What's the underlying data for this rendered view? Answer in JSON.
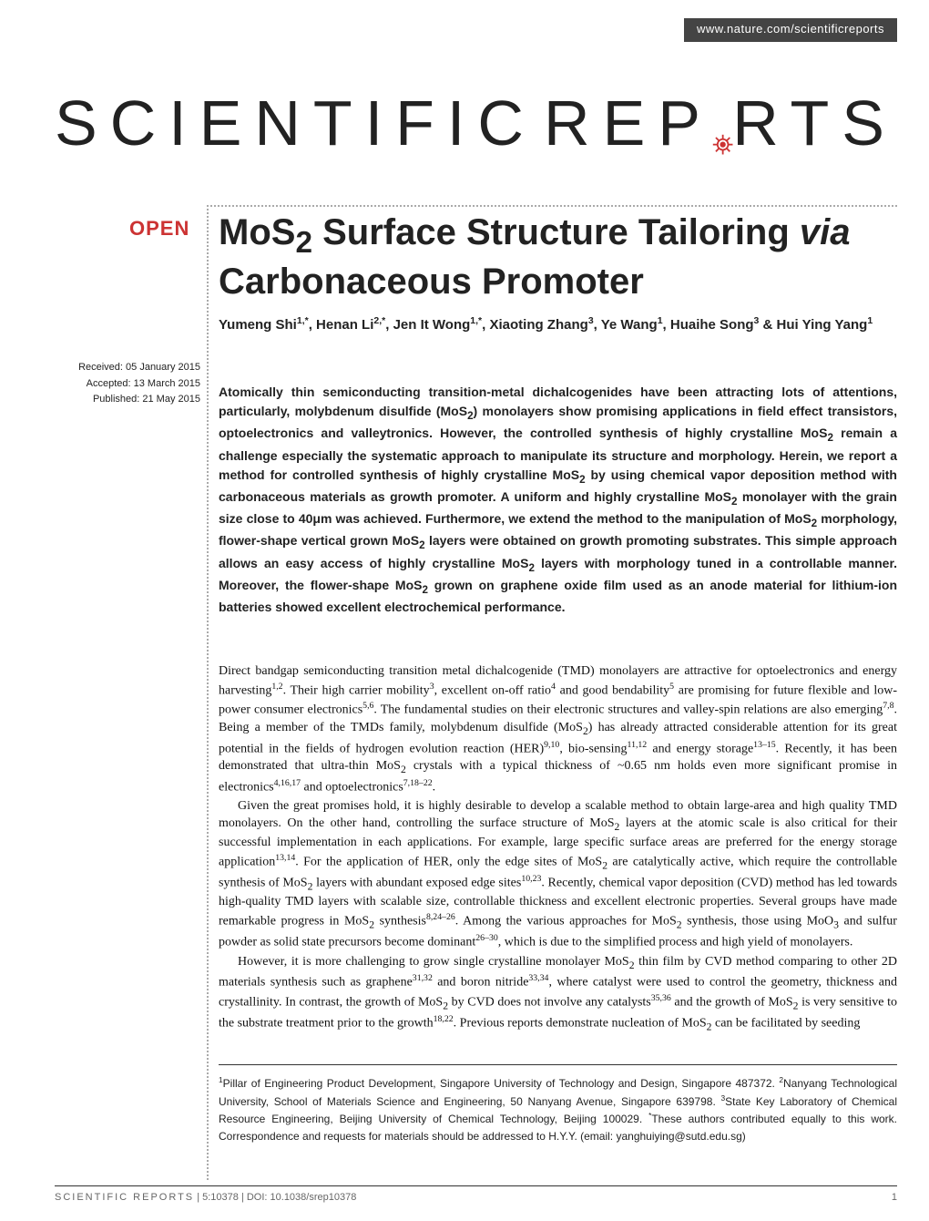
{
  "header": {
    "url": "www.nature.com/scientificreports",
    "logo_part1": "SCIENTIFIC",
    "logo_part2": "REP",
    "logo_part3": "RTS",
    "gear_color": "#cc3333"
  },
  "open_badge": "OPEN",
  "title": "MoS₂ Surface Structure Tailoring via Carbonaceous Promoter",
  "title_html": "MoS<sub>2</sub> Surface Structure Tailoring <i>via</i> Carbonaceous Promoter",
  "authors_html": "Yumeng Shi<sup>1,*</sup>, Henan Li<sup>2,*</sup>, Jen It Wong<sup>1,*</sup>, Xiaoting Zhang<sup>3</sup>, Ye Wang<sup>1</sup>, Huaihe Song<sup>3</sup> & Hui Ying Yang<sup>1</sup>",
  "dates": {
    "received": "Received: 05 January 2015",
    "accepted": "Accepted: 13 March 2015",
    "published": "Published: 21 May 2015"
  },
  "abstract_html": "Atomically thin semiconducting transition-metal dichalcogenides have been attracting lots of attentions, particularly, molybdenum disulfide (MoS<sub>2</sub>) monolayers show promising applications in field effect transistors, optoelectronics and valleytronics. However, the controlled synthesis of highly crystalline MoS<sub>2</sub> remain a challenge especially the systematic approach to manipulate its structure and morphology. Herein, we report a method for controlled synthesis of highly crystalline MoS<sub>2</sub> by using chemical vapor deposition method with carbonaceous materials as growth promoter. A uniform and highly crystalline MoS<sub>2</sub> monolayer with the grain size close to 40μm was achieved. Furthermore, we extend the method to the manipulation of MoS<sub>2</sub> morphology, flower-shape vertical grown MoS<sub>2</sub> layers were obtained on growth promoting substrates. This simple approach allows an easy access of highly crystalline MoS<sub>2</sub> layers with morphology tuned in a controllable manner. Moreover, the flower-shape MoS<sub>2</sub> grown on graphene oxide film used as an anode material for lithium-ion batteries showed excellent electrochemical performance.",
  "body_paragraphs_html": [
    "Direct bandgap semiconducting transition metal dichalcogenide (TMD) monolayers are attractive for optoelectronics and energy harvesting<sup>1,2</sup>. Their high carrier mobility<sup>3</sup>, excellent on-off ratio<sup>4</sup> and good bendability<sup>5</sup> are promising for future flexible and low-power consumer electronics<sup>5,6</sup>. The fundamental studies on their electronic structures and valley-spin relations are also emerging<sup>7,8</sup>. Being a member of the TMDs family, molybdenum disulfide (MoS<sub>2</sub>) has already attracted considerable attention for its great potential in the fields of hydrogen evolution reaction (HER)<sup>9,10</sup>, bio-sensing<sup>11,12</sup> and energy storage<sup>13–15</sup>. Recently, it has been demonstrated that ultra-thin MoS<sub>2</sub> crystals with a typical thickness of ~0.65 nm holds even more significant promise in electronics<sup>4,16,17</sup> and optoelectronics<sup>7,18–22</sup>.",
    "Given the great promises hold, it is highly desirable to develop a scalable method to obtain large-area and high quality TMD monolayers. On the other hand, controlling the surface structure of MoS<sub>2</sub> layers at the atomic scale is also critical for their successful implementation in each applications. For example, large specific surface areas are preferred for the energy storage application<sup>13,14</sup>. For the application of HER, only the edge sites of MoS<sub>2</sub> are catalytically active, which require the controllable synthesis of MoS<sub>2</sub> layers with abundant exposed edge sites<sup>10,23</sup>. Recently, chemical vapor deposition (CVD) method has led towards high-quality TMD layers with scalable size, controllable thickness and excellent electronic properties. Several groups have made remarkable progress in MoS<sub>2</sub> synthesis<sup>8,24–26</sup>. Among the various approaches for MoS<sub>2</sub> synthesis, those using MoO<sub>3</sub> and sulfur powder as solid state precursors become dominant<sup>26–30</sup>, which is due to the simplified process and high yield of monolayers.",
    "However, it is more challenging to grow single crystalline monolayer MoS<sub>2</sub> thin film by CVD method comparing to other 2D materials synthesis such as graphene<sup>31,32</sup> and boron nitride<sup>33,34</sup>, where catalyst were used to control the geometry, thickness and crystallinity. In contrast, the growth of MoS<sub>2</sub> by CVD does not involve any catalysts<sup>35,36</sup> and the growth of MoS<sub>2</sub> is very sensitive to the substrate treatment prior to the growth<sup>18,22</sup>. Previous reports demonstrate nucleation of MoS<sub>2</sub> can be facilitated by seeding"
  ],
  "affiliations_html": "<sup>1</sup>Pillar of Engineering Product Development, Singapore University of Technology and Design, Singapore 487372. <sup>2</sup>Nanyang Technological University, School of Materials Science and Engineering, 50 Nanyang Avenue, Singapore 639798. <sup>3</sup>State Key Laboratory of Chemical Resource Engineering, Beijing University of Chemical Technology, Beijing 100029. <sup>*</sup>These authors contributed equally to this work. Correspondence and requests for materials should be addressed to H.Y.Y. (email: yanghuiying@sutd.edu.sg)",
  "footer": {
    "citation_html": "<span class='footer-journal'>SCIENTIFIC REPORTS</span> | 5:10378 | DOI: 10.1038/srep10378",
    "page": "1"
  },
  "colors": {
    "accent": "#cc3333",
    "topbar_bg": "#444444",
    "text": "#222222"
  }
}
